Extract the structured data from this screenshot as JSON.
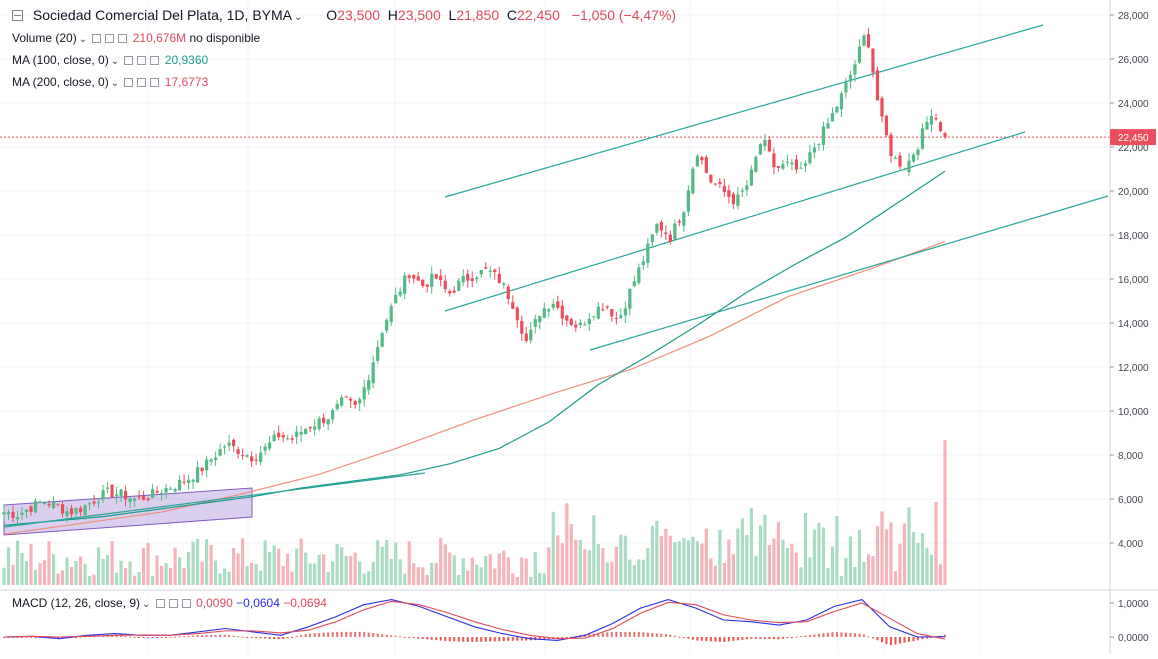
{
  "header": {
    "symbol": "Sociedad Comercial Del Plata, 1D, BYMA",
    "open_label": "O",
    "open": "23,500",
    "high_label": "H",
    "high": "23,500",
    "low_label": "L",
    "low": "21,850",
    "close_label": "C",
    "close": "22,450",
    "change": "−1,050 (−4,47%)"
  },
  "indicators": [
    {
      "label": "Volume (20)",
      "value": "210,676M",
      "extra": "no disponible",
      "color": "#e04a5a"
    },
    {
      "label": "MA (100, close, 0)",
      "value": "20,9360",
      "color": "#1c9c8b"
    },
    {
      "label": "MA (200, close, 0)",
      "value": "17,6773",
      "color": "#e04a5a"
    }
  ],
  "macd": {
    "label": "MACD (12, 26, close, 9)",
    "v1": "0,0090",
    "v2": "−0,0604",
    "v3": "−0,0694"
  },
  "price_axis": {
    "ticks": [
      "28,000",
      "26,000",
      "24,000",
      "22,000",
      "20,000",
      "18,000",
      "16,000",
      "14,000",
      "12,000",
      "10,000",
      "8,000",
      "6,000",
      "4,000"
    ],
    "last_price": "22,450"
  },
  "macd_axis": {
    "ticks": [
      "1,0000",
      "0,0000"
    ]
  },
  "colors": {
    "up": "#53b987",
    "down": "#eb4d5c",
    "ma100": "#1c9c8b",
    "ma200": "#f28d7a",
    "trend": "#26a69a",
    "macd": "#2a2ee6",
    "signal": "#e04a5a",
    "grid": "#f0f3fa"
  },
  "chart_data": {
    "type": "line",
    "title": "Sociedad Comercial Del Plata, 1D, BYMA",
    "ylim": [
      2.2,
      29
    ],
    "series": [
      {
        "name": "Price",
        "values": [
          5.4,
          5.3,
          5.6,
          5.9,
          5.7,
          5.4,
          5.6,
          6.0,
          6.3,
          6.2,
          6.0,
          6.1,
          6.4,
          6.6,
          6.9,
          7.3,
          7.9,
          8.5,
          8.2,
          7.9,
          8.3,
          8.9,
          8.7,
          9.2,
          9.5,
          9.8,
          10.5,
          10.1,
          11.8,
          13.8,
          15.2,
          16.3,
          15.7,
          16.1,
          15.3,
          15.9,
          16.2,
          16.4,
          15.9,
          14.8,
          13.1,
          14.5,
          15.0,
          14.2,
          13.8,
          14.5,
          14.9,
          14.1,
          15.6,
          17.0,
          18.5,
          17.9,
          19.2,
          21.9,
          20.5,
          20.0,
          19.5,
          20.4,
          22.4,
          21.0,
          21.2,
          20.8,
          22.0,
          23.0,
          24.2,
          25.6,
          27.3,
          23.5,
          21.5,
          21.1,
          22.2,
          23.7,
          22.45
        ]
      },
      {
        "name": "MA (100, close, 0)",
        "values": [
          4.8,
          5.0,
          5.2,
          5.5,
          5.8,
          6.1,
          6.5,
          6.8,
          7.1,
          7.6,
          8.3,
          9.5,
          11.2,
          12.5,
          13.9,
          15.4,
          16.7,
          17.9,
          19.4,
          20.9
        ]
      },
      {
        "name": "MA (200, close, 0)",
        "values": [
          4.4,
          4.9,
          5.4,
          6.2,
          7.1,
          8.3,
          9.6,
          10.8,
          11.9,
          13.4,
          15.2,
          16.4,
          17.7
        ]
      },
      {
        "name": "MACD",
        "values": [
          0.0,
          0.02,
          -0.05,
          0.05,
          0.1,
          0.05,
          0.05,
          0.15,
          0.25,
          0.15,
          0.05,
          0.3,
          0.6,
          0.95,
          1.1,
          0.9,
          0.6,
          0.3,
          0.1,
          -0.05,
          -0.1,
          0.05,
          0.4,
          0.85,
          1.1,
          0.85,
          0.5,
          0.45,
          0.35,
          0.5,
          0.9,
          1.1,
          0.3,
          0.0,
          0.009
        ]
      },
      {
        "name": "Signal",
        "values": [
          0.0,
          0.02,
          0.0,
          0.02,
          0.05,
          0.06,
          0.05,
          0.1,
          0.18,
          0.18,
          0.12,
          0.2,
          0.45,
          0.8,
          1.05,
          0.95,
          0.72,
          0.45,
          0.22,
          0.05,
          -0.05,
          -0.03,
          0.25,
          0.7,
          1.02,
          0.95,
          0.65,
          0.5,
          0.42,
          0.45,
          0.75,
          1.0,
          0.55,
          0.1,
          -0.06
        ]
      }
    ]
  }
}
